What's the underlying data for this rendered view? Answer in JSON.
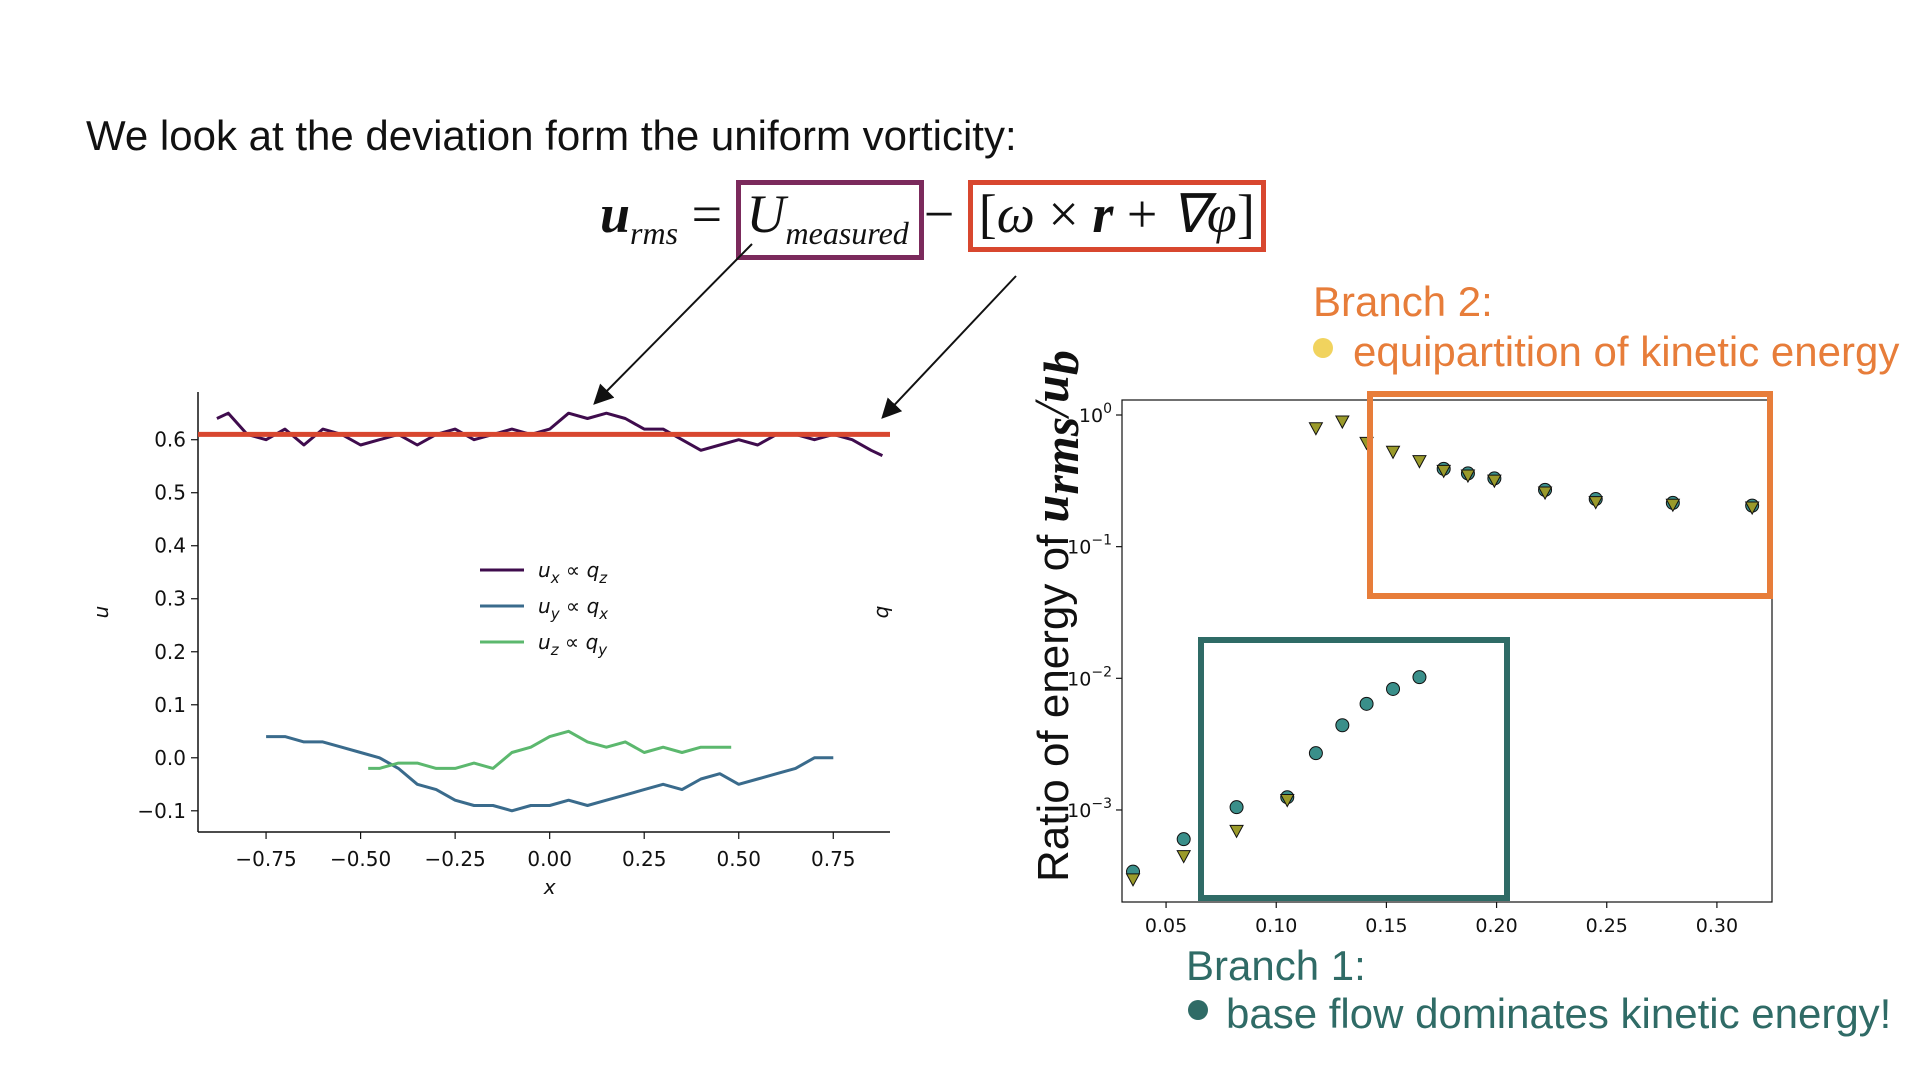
{
  "slide": {
    "intro_text": "We look at the deviation form the uniform vorticity:",
    "equation": {
      "lhs": "u",
      "lhs_sub": "rms",
      "equals": "=",
      "measured": "U",
      "measured_sub": "measured",
      "minus": "−",
      "bracket_open": "[",
      "omega": "ω",
      "times": "×",
      "r": "r",
      "plus": "+",
      "grad": "∇φ",
      "bracket_close": "]"
    },
    "branch2": {
      "title": "Branch 2:",
      "text": "equipartition of kinetic energy",
      "color": "#e77d3a",
      "dot_color": "#f1d35e"
    },
    "branch1": {
      "title": "Branch 1:",
      "text": "base flow dominates kinetic energy!",
      "color": "#2f6b66",
      "dot_color": "#2f6b66"
    },
    "ratio_label": {
      "prefix": "Ratio of energy of ",
      "num": "u",
      "num_sub": "rms",
      "slash": "/",
      "den": "u",
      "den_sub": "b"
    },
    "colors": {
      "box_measured": "#7b2a5c",
      "box_base": "#d8472f",
      "mean_line": "#d8472f"
    }
  },
  "chart_data": [
    {
      "type": "line",
      "xlabel": "x",
      "ylabel": "u",
      "right_label": "q",
      "xlim": [
        -0.93,
        0.9
      ],
      "ylim": [
        -0.14,
        0.69
      ],
      "xticks": [
        "−0.75",
        "−0.50",
        "−0.25",
        "0.00",
        "0.25",
        "0.50",
        "0.75"
      ],
      "xtick_values": [
        -0.75,
        -0.5,
        -0.25,
        0.0,
        0.25,
        0.5,
        0.75
      ],
      "yticks": [
        "−0.1",
        "0.0",
        "0.1",
        "0.2",
        "0.3",
        "0.4",
        "0.5",
        "0.6"
      ],
      "ytick_values": [
        -0.1,
        0.0,
        0.1,
        0.2,
        0.3,
        0.4,
        0.5,
        0.6
      ],
      "legend_position": "center",
      "series": [
        {
          "name": "u_x ∝ q_z",
          "legend_main": "u",
          "legend_sub": "x",
          "legend_rel": " ∝ q",
          "legend_rel_sub": "z",
          "color": "#3f0c4d",
          "x": [
            -0.88,
            -0.85,
            -0.8,
            -0.75,
            -0.7,
            -0.65,
            -0.6,
            -0.55,
            -0.5,
            -0.45,
            -0.4,
            -0.35,
            -0.3,
            -0.25,
            -0.2,
            -0.15,
            -0.1,
            -0.05,
            0.0,
            0.05,
            0.1,
            0.15,
            0.2,
            0.25,
            0.3,
            0.35,
            0.4,
            0.45,
            0.5,
            0.55,
            0.6,
            0.65,
            0.7,
            0.75,
            0.8,
            0.85,
            0.88
          ],
          "y": [
            0.64,
            0.65,
            0.61,
            0.6,
            0.62,
            0.59,
            0.62,
            0.61,
            0.59,
            0.6,
            0.61,
            0.59,
            0.61,
            0.62,
            0.6,
            0.61,
            0.62,
            0.61,
            0.62,
            0.65,
            0.64,
            0.65,
            0.64,
            0.62,
            0.62,
            0.6,
            0.58,
            0.59,
            0.6,
            0.59,
            0.61,
            0.61,
            0.6,
            0.61,
            0.6,
            0.58,
            0.57
          ]
        },
        {
          "name": "u_y ∝ q_x",
          "legend_main": "u",
          "legend_sub": "y",
          "legend_rel": " ∝ q",
          "legend_rel_sub": "x",
          "color": "#3a6b8c",
          "x": [
            -0.75,
            -0.7,
            -0.65,
            -0.6,
            -0.55,
            -0.5,
            -0.45,
            -0.4,
            -0.35,
            -0.3,
            -0.25,
            -0.2,
            -0.15,
            -0.1,
            -0.05,
            0.0,
            0.05,
            0.1,
            0.15,
            0.2,
            0.25,
            0.3,
            0.35,
            0.4,
            0.45,
            0.5,
            0.55,
            0.6,
            0.65,
            0.7,
            0.75
          ],
          "y": [
            0.04,
            0.04,
            0.03,
            0.03,
            0.02,
            0.01,
            0.0,
            -0.02,
            -0.05,
            -0.06,
            -0.08,
            -0.09,
            -0.09,
            -0.1,
            -0.09,
            -0.09,
            -0.08,
            -0.09,
            -0.08,
            -0.07,
            -0.06,
            -0.05,
            -0.06,
            -0.04,
            -0.03,
            -0.05,
            -0.04,
            -0.03,
            -0.02,
            0.0,
            0.0
          ]
        },
        {
          "name": "u_z ∝ q_y",
          "legend_main": "u",
          "legend_sub": "z",
          "legend_rel": " ∝ q",
          "legend_rel_sub": "y",
          "color": "#5cb86e",
          "x": [
            -0.48,
            -0.45,
            -0.4,
            -0.35,
            -0.3,
            -0.25,
            -0.2,
            -0.15,
            -0.1,
            -0.05,
            0.0,
            0.05,
            0.1,
            0.15,
            0.2,
            0.25,
            0.3,
            0.35,
            0.4,
            0.45,
            0.48
          ],
          "y": [
            -0.02,
            -0.02,
            -0.01,
            -0.01,
            -0.02,
            -0.02,
            -0.01,
            -0.02,
            0.01,
            0.02,
            0.04,
            0.05,
            0.03,
            0.02,
            0.03,
            0.01,
            0.02,
            0.01,
            0.02,
            0.02,
            0.02
          ]
        }
      ],
      "mean_line": {
        "y": 0.61,
        "x_range": [
          -0.93,
          0.9
        ]
      }
    },
    {
      "type": "scatter",
      "ylabel": "Ratio of energy of u_rms/u_b",
      "yscale": "log",
      "xlim": [
        0.03,
        0.325
      ],
      "ylim": [
        0.0002,
        1.3
      ],
      "xticks": [
        "0.05",
        "0.10",
        "0.15",
        "0.20",
        "0.25",
        "0.30"
      ],
      "xtick_values": [
        0.05,
        0.1,
        0.15,
        0.2,
        0.25,
        0.3
      ],
      "yticks": [
        {
          "base": "10",
          "exp": "0",
          "value": 1
        },
        {
          "base": "10",
          "exp": "−1",
          "value": 0.1
        },
        {
          "base": "10",
          "exp": "−2",
          "value": 0.01
        },
        {
          "base": "10",
          "exp": "−3",
          "value": 0.001
        }
      ],
      "series": [
        {
          "marker": "triangle-down",
          "color": "#9a9a2a",
          "x": [
            0.035,
            0.058,
            0.082,
            0.105,
            0.118,
            0.13,
            0.141,
            0.153,
            0.165,
            0.176,
            0.187,
            0.199,
            0.222,
            0.245,
            0.28,
            0.316
          ],
          "y": [
            0.0003,
            0.00045,
            0.0007,
            0.0012,
            0.8,
            0.9,
            0.62,
            0.53,
            0.45,
            0.38,
            0.35,
            0.32,
            0.26,
            0.22,
            0.21,
            0.2
          ]
        },
        {
          "marker": "circle",
          "color": "#3a8f8a",
          "x": [
            0.035,
            0.058,
            0.082,
            0.105,
            0.118,
            0.13,
            0.141,
            0.153,
            0.165,
            0.176,
            0.187,
            0.199,
            0.222,
            0.245,
            0.28,
            0.316
          ],
          "y": [
            0.00034,
            0.0006,
            0.00105,
            0.00125,
            0.0027,
            0.0044,
            0.0064,
            0.0083,
            0.0102,
            0.39,
            0.36,
            0.33,
            0.27,
            0.23,
            0.215,
            0.205
          ]
        }
      ]
    }
  ]
}
